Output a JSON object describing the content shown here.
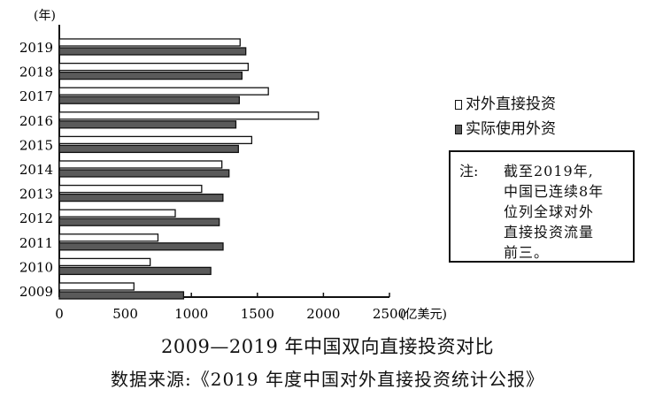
{
  "chart_data": {
    "type": "bar",
    "orientation": "horizontal",
    "categories": [
      "2009",
      "2010",
      "2011",
      "2012",
      "2013",
      "2014",
      "2015",
      "2016",
      "2017",
      "2018",
      "2019"
    ],
    "series": [
      {
        "name": "对外直接投资",
        "values": [
          565,
          688,
          747,
          878,
          1078,
          1231,
          1457,
          1962,
          1583,
          1430,
          1369
        ],
        "color": "#ffffff"
      },
      {
        "name": "实际使用外资",
        "values": [
          941,
          1147,
          1240,
          1211,
          1239,
          1285,
          1356,
          1337,
          1363,
          1383,
          1412
        ],
        "color": "#5a5a5a"
      }
    ],
    "xlim": [
      0,
      2500
    ],
    "xticks": [
      "0",
      "500",
      "1000",
      "1500",
      "2000",
      "2500"
    ],
    "xunit": "(亿美元)",
    "yunit": "(年)",
    "legend_position": "right",
    "title": "2009—2019 年中国双向直接投资对比",
    "source": "数据来源:《2019 年度中国对外直接投资统计公报》"
  },
  "note": {
    "label": "注:",
    "lines": [
      "截至2019年,",
      "中国已连续8年",
      "位列全球对外",
      "直接投资流量",
      "前三。"
    ]
  }
}
